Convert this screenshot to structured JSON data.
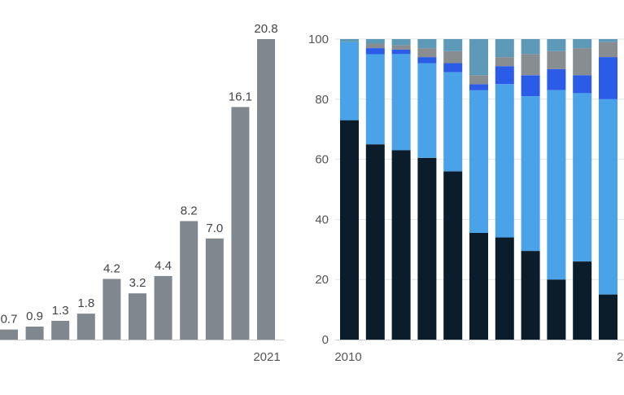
{
  "colors": {
    "left_bar": "#7f878f",
    "axis_text": "#555555",
    "label_text": "#444444",
    "axis_line": "#cccccc",
    "grid": "#e6e6e6",
    "stack": [
      "#0b1c2b",
      "#4aa3e8",
      "#2b5ce8",
      "#888d92",
      "#5c9ab8"
    ]
  },
  "chart_data": [
    {
      "type": "bar",
      "x_tick_labels": [
        "2021"
      ],
      "categories": [
        "",
        "",
        "",
        "",
        "",
        "",
        "",
        "",
        "",
        "",
        "2021"
      ],
      "values": [
        0.7,
        0.9,
        1.3,
        1.8,
        4.2,
        3.2,
        4.4,
        8.2,
        7.0,
        16.1,
        20.8
      ],
      "data_labels": [
        "0.7",
        "0.9",
        "1.3",
        "1.8",
        "4.2",
        "3.2",
        "4.4",
        "8.2",
        "7.0",
        "16.1",
        "20.8"
      ],
      "ylim": [
        0,
        20.8
      ],
      "grid": false,
      "legend": "none"
    },
    {
      "type": "bar",
      "stacked": true,
      "x_tick_labels": [
        "2010",
        "2"
      ],
      "y_ticks": [
        "0",
        "20",
        "40",
        "60",
        "80",
        "100"
      ],
      "ylim": [
        0,
        100
      ],
      "grid": true,
      "legend": "none",
      "series": [
        {
          "values": [
            73,
            65,
            63,
            60.5,
            56,
            35.5,
            34,
            29.5,
            20,
            26,
            15
          ]
        },
        {
          "values": [
            26,
            30,
            32,
            31.5,
            33,
            47.5,
            51,
            51.5,
            63,
            56,
            65
          ]
        },
        {
          "values": [
            0,
            2,
            1.5,
            2,
            3,
            2,
            6,
            7,
            7,
            6,
            14
          ]
        },
        {
          "values": [
            0,
            1.5,
            1.5,
            3,
            4,
            3,
            3,
            7,
            6,
            9,
            5
          ]
        },
        {
          "values": [
            1,
            1.5,
            2,
            3,
            4,
            12,
            6,
            5,
            4,
            3,
            1
          ]
        }
      ]
    }
  ]
}
